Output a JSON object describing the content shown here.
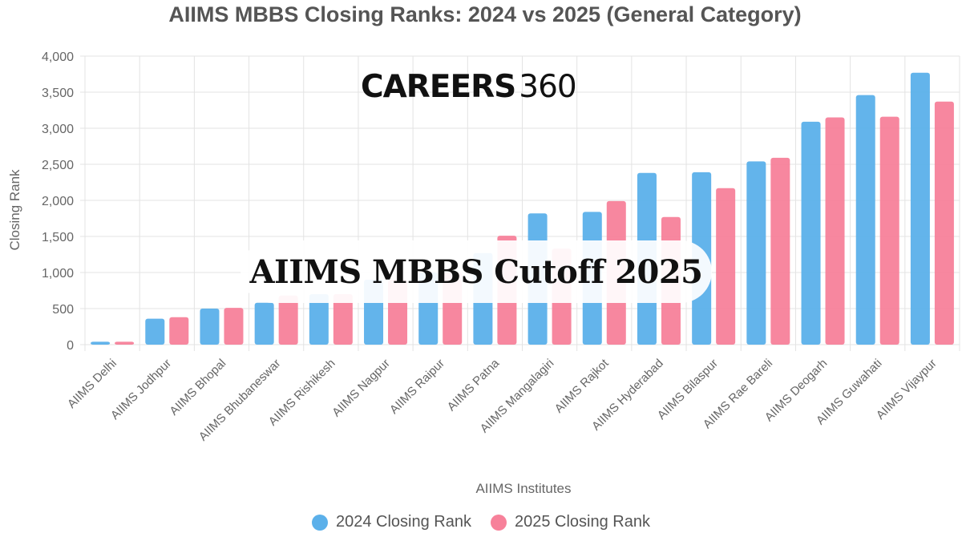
{
  "chart_data": {
    "type": "bar",
    "title": "AIIMS MBBS Closing Ranks: 2024 vs 2025 (General Category)",
    "xlabel": "AIIMS Institutes",
    "ylabel": "Closing Rank",
    "ylim": [
      0,
      4000
    ],
    "yticks": [
      "0",
      "500",
      "1,000",
      "1,500",
      "2,000",
      "2,500",
      "3,000",
      "3,500",
      "4,000"
    ],
    "grid": true,
    "legend_position": "bottom",
    "categories": [
      "AIIMS Delhi",
      "AIIMS Jodhpur",
      "AIIMS Bhopal",
      "AIIMS Bhubaneswar",
      "AIIMS Rishikesh",
      "AIIMS Nagpur",
      "AIIMS Raipur",
      "AIIMS Patna",
      "AIIMS Mangalagiri",
      "AIIMS Rajkot",
      "AIIMS Hyderabad",
      "AIIMS Bilaspur",
      "AIIMS Rae Bareli",
      "AIIMS Deogarh",
      "AIIMS Guwahati",
      "AIIMS Vijaypur"
    ],
    "series": [
      {
        "name": "2024 Closing Rank",
        "color": "#5BB0EA",
        "values": [
          40,
          360,
          500,
          580,
          700,
          900,
          1000,
          1270,
          1820,
          1840,
          2380,
          2390,
          2540,
          3090,
          3460,
          3770
        ]
      },
      {
        "name": "2025 Closing Rank",
        "color": "#F7819A",
        "values": [
          40,
          380,
          510,
          680,
          700,
          900,
          1000,
          1510,
          1330,
          1990,
          1770,
          2170,
          2590,
          3150,
          3160,
          3370
        ]
      }
    ]
  },
  "branding": {
    "logo_main": "CAREERS",
    "logo_number": "360"
  },
  "overlay": {
    "banner_text": "AIIMS MBBS Cutoff 2025"
  }
}
